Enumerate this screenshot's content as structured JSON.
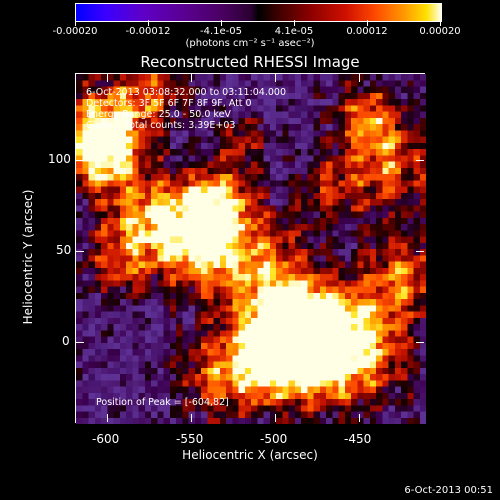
{
  "colorbar": {
    "tick_labels": [
      "-0.00020",
      "-0.00012",
      "-4.1e-05",
      "4.1e-05",
      "0.00012",
      "0.00020"
    ],
    "units": "(photons cm⁻² s⁻¹ asec⁻²)"
  },
  "title": "Reconstructed RHESSI Image",
  "info": {
    "time_range": "6-Oct-2013 03:08:32.000 to 03:11:04.000",
    "detectors": "Detectors: 3F 5F 6F 7F 8F 9F, Att 0",
    "energy": "Energy Range: 25.0 - 50.0 keV",
    "clean": "Clean    Total counts: 3.39E+03",
    "peak": "Position of Peak = [-604,82]"
  },
  "axes": {
    "xlabel": "Heliocentric X (arcsec)",
    "ylabel": "Heliocentric Y (arcsec)",
    "x_ticks": [
      "-600",
      "-550",
      "-500",
      "-450"
    ],
    "y_ticks": [
      "100",
      "50",
      "0"
    ]
  },
  "timestamp": "6-Oct-2013 00:51"
}
